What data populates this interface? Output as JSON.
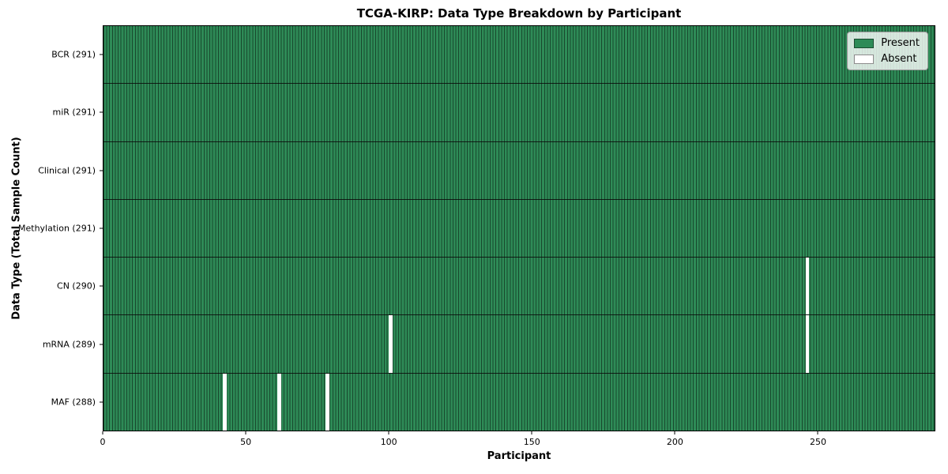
{
  "chart_data": {
    "type": "heatmap",
    "title": "TCGA-KIRP: Data Type Breakdown by Participant",
    "xlabel": "Participant",
    "ylabel": "Data Type (Total Sample Count)",
    "n_participants": 291,
    "xlim": [
      0,
      291
    ],
    "x_ticks": [
      0,
      50,
      100,
      150,
      200,
      250
    ],
    "grid": false,
    "legend_position": "upper right",
    "present_color": "#2e8b57",
    "absent_color": "#ffffff",
    "rows": [
      {
        "label": "BCR (291)",
        "data_type": "BCR",
        "count": 291,
        "missing_participants": []
      },
      {
        "label": "miR (291)",
        "data_type": "miR",
        "count": 291,
        "missing_participants": []
      },
      {
        "label": "Clinical (291)",
        "data_type": "Clinical",
        "count": 291,
        "missing_participants": []
      },
      {
        "label": "Methylation (291)",
        "data_type": "Methylation",
        "count": 291,
        "missing_participants": []
      },
      {
        "label": "CN (290)",
        "data_type": "CN",
        "count": 290,
        "missing_participants": [
          246
        ]
      },
      {
        "label": "mRNA (289)",
        "data_type": "mRNA",
        "count": 289,
        "missing_participants": [
          100,
          246
        ]
      },
      {
        "label": "MAF (288)",
        "data_type": "MAF",
        "count": 288,
        "missing_participants": [
          42,
          61,
          78
        ]
      }
    ],
    "legend": [
      {
        "label": "Present",
        "color": "#2e8b57"
      },
      {
        "label": "Absent",
        "color": "#ffffff"
      }
    ]
  }
}
